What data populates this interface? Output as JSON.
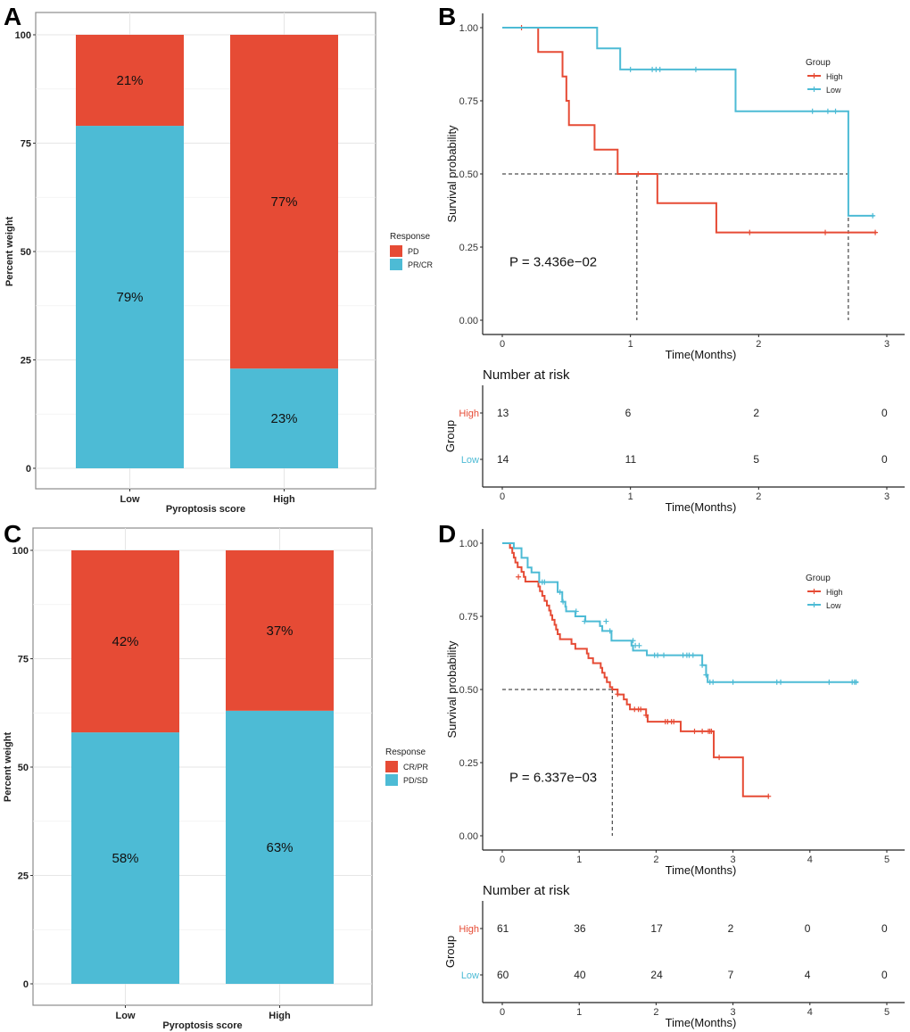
{
  "figure": {
    "colors": {
      "red": "#E64B35",
      "blue": "#4DBBD5"
    },
    "panels": [
      "A",
      "B",
      "C",
      "D"
    ]
  },
  "chart_data": [
    {
      "panel": "A",
      "type": "bar",
      "stacked": true,
      "title": "",
      "xlabel": "Pyroptosis score",
      "ylabel": "Percent weight",
      "categories": [
        "Low",
        "High"
      ],
      "yticks": [
        "0",
        "25",
        "50",
        "75",
        "100"
      ],
      "ylim": [
        0,
        100
      ],
      "grid": true,
      "legend": {
        "title": "Response",
        "position": "right",
        "entries": [
          "PD",
          "PR/CR"
        ]
      },
      "series": [
        {
          "name": "PR/CR",
          "color": "#4DBBD5",
          "values": [
            79,
            23
          ],
          "labels": [
            "79%",
            "23%"
          ]
        },
        {
          "name": "PD",
          "color": "#E64B35",
          "values": [
            21,
            77
          ],
          "labels": [
            "21%",
            "77%"
          ]
        }
      ]
    },
    {
      "panel": "B",
      "type": "line",
      "subtype": "kaplan-meier",
      "xlabel": "Time(Months)",
      "ylabel": "Survival probability",
      "xlim": [
        0,
        3
      ],
      "ylim": [
        0,
        1
      ],
      "xticks": [
        "0",
        "1",
        "2",
        "3"
      ],
      "yticks": [
        "0.00",
        "0.25",
        "0.50",
        "0.75",
        "1.00"
      ],
      "pvalue": "P = 3.436e−02",
      "median_lines": [
        1.05,
        2.7
      ],
      "legend": {
        "title": "Group",
        "position": "top-right",
        "entries": [
          "High",
          "Low"
        ]
      },
      "series": [
        {
          "name": "High",
          "color": "#E64B35",
          "steps": [
            [
              0,
              1.0
            ],
            [
              0.28,
              0.917
            ],
            [
              0.47,
              0.833
            ],
            [
              0.5,
              0.75
            ],
            [
              0.52,
              0.667
            ],
            [
              0.72,
              0.583
            ],
            [
              0.9,
              0.5
            ],
            [
              1.21,
              0.4
            ],
            [
              1.67,
              0.3
            ],
            [
              2.92,
              0.3
            ]
          ],
          "censor": [
            [
              0.15,
              1.0
            ],
            [
              1.06,
              0.5
            ],
            [
              1.93,
              0.3
            ],
            [
              2.52,
              0.3
            ],
            [
              2.91,
              0.3
            ]
          ]
        },
        {
          "name": "Low",
          "color": "#4DBBD5",
          "steps": [
            [
              0,
              1.0
            ],
            [
              0.74,
              0.929
            ],
            [
              0.92,
              0.857
            ],
            [
              1.82,
              0.714
            ],
            [
              2.7,
              0.357
            ],
            [
              2.9,
              0.357
            ]
          ],
          "censor": [
            [
              1.0,
              0.857
            ],
            [
              1.17,
              0.857
            ],
            [
              1.2,
              0.857
            ],
            [
              1.23,
              0.857
            ],
            [
              1.51,
              0.857
            ],
            [
              2.42,
              0.714
            ],
            [
              2.54,
              0.714
            ],
            [
              2.6,
              0.714
            ],
            [
              2.89,
              0.357
            ]
          ]
        }
      ],
      "risk_table": {
        "title": "Number at risk",
        "ylabel": "Group",
        "xlabel": "Time(Months)",
        "times": [
          "0",
          "1",
          "2",
          "3"
        ],
        "rows": [
          {
            "group": "High",
            "color": "#E64B35",
            "values": [
              "13",
              "6",
              "2",
              "0"
            ]
          },
          {
            "group": "Low",
            "color": "#4DBBD5",
            "values": [
              "14",
              "11",
              "5",
              "0"
            ]
          }
        ]
      }
    },
    {
      "panel": "C",
      "type": "bar",
      "stacked": true,
      "title": "",
      "xlabel": "Pyroptosis score",
      "ylabel": "Percent weight",
      "categories": [
        "Low",
        "High"
      ],
      "yticks": [
        "0",
        "25",
        "50",
        "75",
        "100"
      ],
      "ylim": [
        0,
        100
      ],
      "grid": true,
      "legend": {
        "title": "Response",
        "position": "right",
        "entries": [
          "CR/PR",
          "PD/SD"
        ]
      },
      "series": [
        {
          "name": "PD/SD",
          "color": "#4DBBD5",
          "values": [
            58,
            63
          ],
          "labels": [
            "58%",
            "63%"
          ]
        },
        {
          "name": "CR/PR",
          "color": "#E64B35",
          "values": [
            42,
            37
          ],
          "labels": [
            "42%",
            "37%"
          ]
        }
      ]
    },
    {
      "panel": "D",
      "type": "line",
      "subtype": "kaplan-meier",
      "xlabel": "Time(Months)",
      "ylabel": "Survival probability",
      "xlim": [
        0,
        5
      ],
      "ylim": [
        0,
        1
      ],
      "xticks": [
        "0",
        "1",
        "2",
        "3",
        "4",
        "5"
      ],
      "yticks": [
        "0.00",
        "0.25",
        "0.50",
        "0.75",
        "1.00"
      ],
      "pvalue": "P = 6.337e−03",
      "median_lines": [
        1.43
      ],
      "legend": {
        "title": "Group",
        "position": "top-right",
        "entries": [
          "High",
          "Low"
        ]
      },
      "series": [
        {
          "name": "High",
          "color": "#E64B35",
          "steps": [
            [
              0,
              1.0
            ],
            [
              0.1,
              0.984
            ],
            [
              0.13,
              0.967
            ],
            [
              0.15,
              0.951
            ],
            [
              0.17,
              0.934
            ],
            [
              0.2,
              0.918
            ],
            [
              0.25,
              0.902
            ],
            [
              0.28,
              0.885
            ],
            [
              0.3,
              0.869
            ],
            [
              0.47,
              0.852
            ],
            [
              0.49,
              0.836
            ],
            [
              0.52,
              0.82
            ],
            [
              0.55,
              0.803
            ],
            [
              0.58,
              0.787
            ],
            [
              0.61,
              0.77
            ],
            [
              0.63,
              0.754
            ],
            [
              0.65,
              0.738
            ],
            [
              0.68,
              0.721
            ],
            [
              0.7,
              0.705
            ],
            [
              0.72,
              0.689
            ],
            [
              0.75,
              0.672
            ],
            [
              0.9,
              0.656
            ],
            [
              0.95,
              0.639
            ],
            [
              1.1,
              0.623
            ],
            [
              1.12,
              0.607
            ],
            [
              1.18,
              0.59
            ],
            [
              1.28,
              0.574
            ],
            [
              1.3,
              0.557
            ],
            [
              1.33,
              0.541
            ],
            [
              1.36,
              0.525
            ],
            [
              1.4,
              0.508
            ],
            [
              1.43,
              0.5
            ],
            [
              1.5,
              0.483
            ],
            [
              1.58,
              0.466
            ],
            [
              1.62,
              0.449
            ],
            [
              1.66,
              0.432
            ],
            [
              1.87,
              0.412
            ],
            [
              1.89,
              0.39
            ],
            [
              2.32,
              0.357
            ],
            [
              2.75,
              0.268
            ],
            [
              3.13,
              0.135
            ],
            [
              3.47,
              0.135
            ]
          ],
          "censor": [
            [
              0.21,
              0.885
            ],
            [
              1.5,
              0.484
            ],
            [
              1.72,
              0.432
            ],
            [
              1.77,
              0.432
            ],
            [
              1.8,
              0.432
            ],
            [
              1.87,
              0.412
            ],
            [
              2.12,
              0.39
            ],
            [
              2.15,
              0.39
            ],
            [
              2.2,
              0.39
            ],
            [
              2.23,
              0.39
            ],
            [
              2.5,
              0.357
            ],
            [
              2.6,
              0.357
            ],
            [
              2.68,
              0.357
            ],
            [
              2.7,
              0.357
            ],
            [
              2.72,
              0.357
            ],
            [
              2.82,
              0.268
            ],
            [
              3.46,
              0.135
            ]
          ]
        },
        {
          "name": "Low",
          "color": "#4DBBD5",
          "steps": [
            [
              0,
              1.0
            ],
            [
              0.15,
              0.983
            ],
            [
              0.25,
              0.95
            ],
            [
              0.33,
              0.917
            ],
            [
              0.38,
              0.9
            ],
            [
              0.48,
              0.867
            ],
            [
              0.72,
              0.833
            ],
            [
              0.78,
              0.8
            ],
            [
              0.82,
              0.783
            ],
            [
              0.83,
              0.767
            ],
            [
              0.95,
              0.75
            ],
            [
              1.08,
              0.733
            ],
            [
              1.27,
              0.717
            ],
            [
              1.3,
              0.7
            ],
            [
              1.42,
              0.667
            ],
            [
              1.68,
              0.65
            ],
            [
              1.7,
              0.633
            ],
            [
              1.88,
              0.617
            ],
            [
              2.6,
              0.583
            ],
            [
              2.65,
              0.55
            ],
            [
              2.67,
              0.525
            ],
            [
              4.63,
              0.525
            ]
          ],
          "censor": [
            [
              0.52,
              0.867
            ],
            [
              0.55,
              0.867
            ],
            [
              0.75,
              0.833
            ],
            [
              0.79,
              0.8
            ],
            [
              0.96,
              0.767
            ],
            [
              1.07,
              0.733
            ],
            [
              1.35,
              0.733
            ],
            [
              1.4,
              0.7
            ],
            [
              1.7,
              0.667
            ],
            [
              1.73,
              0.65
            ],
            [
              1.78,
              0.65
            ],
            [
              1.98,
              0.617
            ],
            [
              2.02,
              0.617
            ],
            [
              2.1,
              0.617
            ],
            [
              2.35,
              0.617
            ],
            [
              2.4,
              0.617
            ],
            [
              2.43,
              0.617
            ],
            [
              2.48,
              0.617
            ],
            [
              2.6,
              0.583
            ],
            [
              2.65,
              0.55
            ],
            [
              2.7,
              0.525
            ],
            [
              2.74,
              0.525
            ],
            [
              3.0,
              0.525
            ],
            [
              3.57,
              0.525
            ],
            [
              3.62,
              0.525
            ],
            [
              4.25,
              0.525
            ],
            [
              4.55,
              0.525
            ],
            [
              4.58,
              0.525
            ],
            [
              4.6,
              0.525
            ]
          ]
        }
      ],
      "risk_table": {
        "title": "Number at risk",
        "ylabel": "Group",
        "xlabel": "Time(Months)",
        "times": [
          "0",
          "1",
          "2",
          "3",
          "4",
          "5"
        ],
        "rows": [
          {
            "group": "High",
            "color": "#E64B35",
            "values": [
              "61",
              "36",
              "17",
              "2",
              "0",
              "0"
            ]
          },
          {
            "group": "Low",
            "color": "#4DBBD5",
            "values": [
              "60",
              "40",
              "24",
              "7",
              "4",
              "0"
            ]
          }
        ]
      }
    }
  ]
}
